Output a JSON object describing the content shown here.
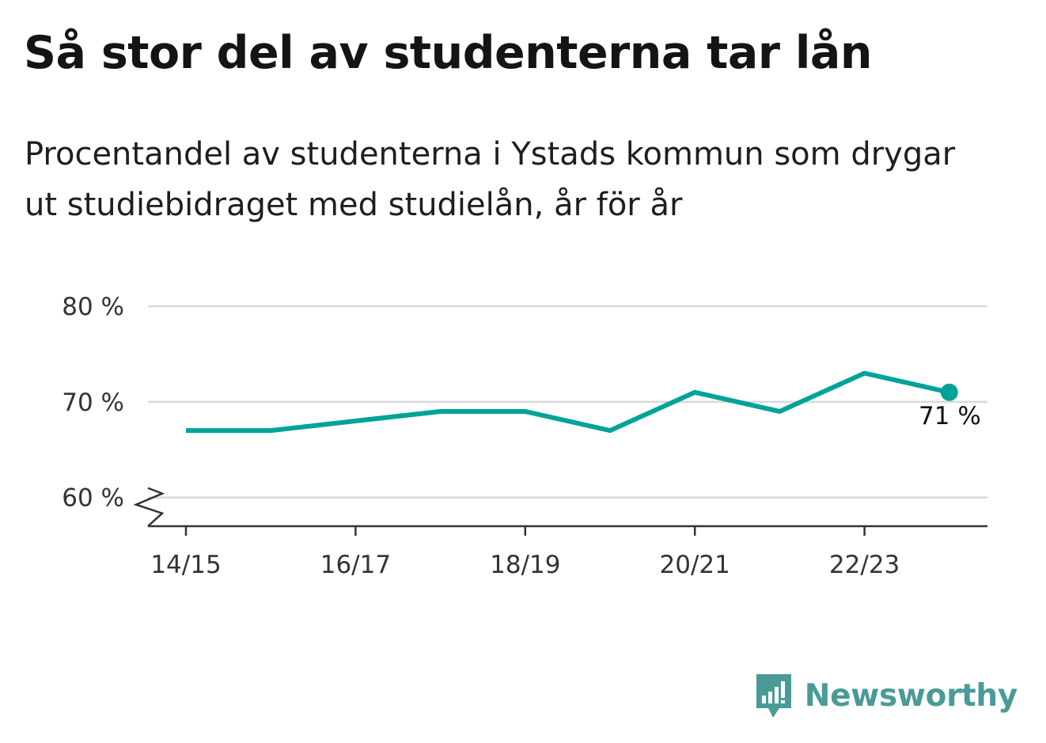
{
  "title": "Så stor del av studenterna tar lån",
  "subtitle": "Procentandel av studenterna i Ystads kommun som drygar ut studiebidraget med studielån, år för år",
  "brand": {
    "name": "Newsworthy",
    "color": "#4a9b97",
    "icon": "newsworthy-logo-icon"
  },
  "chart_data": {
    "type": "line",
    "x": [
      "14/15",
      "15/16",
      "16/17",
      "17/18",
      "18/19",
      "19/20",
      "20/21",
      "21/22",
      "22/23",
      "23/24"
    ],
    "values": [
      67,
      67,
      68,
      69,
      69,
      67,
      71,
      69,
      73,
      71
    ],
    "xticks": [
      "14/15",
      "16/17",
      "18/19",
      "20/21",
      "22/23"
    ],
    "yticks": [
      60,
      70,
      80
    ],
    "ytick_labels": [
      "60 %",
      "70 %",
      "80 %"
    ],
    "ylim": [
      57,
      80
    ],
    "axis_break": true,
    "end_label": "71 %",
    "line_color": "#00a398",
    "grid": true
  }
}
